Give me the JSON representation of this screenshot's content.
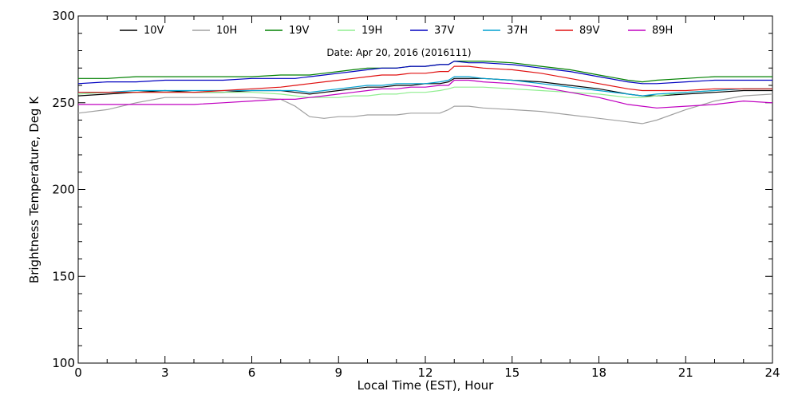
{
  "chart_data": {
    "type": "line",
    "xlabel": "Local Time (EST), Hour",
    "ylabel": "Brightness Temperature, Deg  K",
    "annotation": "Date: Apr 20, 2016 (2016111)",
    "xlim": [
      0,
      24
    ],
    "ylim": [
      100,
      300
    ],
    "xticks": [
      "0",
      "3",
      "6",
      "9",
      "12",
      "15",
      "18",
      "21",
      "24"
    ],
    "yticks": [
      "100",
      "150",
      "200",
      "250",
      "300"
    ],
    "grid": false,
    "legend_position": "top",
    "x": [
      0,
      1,
      2,
      3,
      4,
      5,
      6,
      7,
      7.5,
      8,
      8.5,
      9,
      9.5,
      10,
      10.5,
      11,
      11.5,
      12,
      12.5,
      12.8,
      13,
      13.5,
      14,
      15,
      16,
      17,
      18,
      19,
      19.5,
      20,
      21,
      22,
      23,
      24
    ],
    "series": [
      {
        "name": "10V",
        "color": "#000000",
        "values": [
          254,
          255,
          256,
          257,
          256,
          256,
          257,
          257,
          256,
          255,
          256,
          257,
          258,
          259,
          259,
          260,
          260,
          261,
          261,
          262,
          264,
          264,
          264,
          263,
          262,
          260,
          258,
          255,
          254,
          254,
          255,
          256,
          257,
          257
        ]
      },
      {
        "name": "10H",
        "color": "#a0a0a0",
        "values": [
          244,
          246,
          250,
          253,
          253,
          253,
          253,
          252,
          248,
          242,
          241,
          242,
          242,
          243,
          243,
          243,
          244,
          244,
          244,
          246,
          248,
          248,
          247,
          246,
          245,
          243,
          241,
          239,
          238,
          240,
          246,
          251,
          254,
          255
        ]
      },
      {
        "name": "19V",
        "color": "#008000",
        "values": [
          264,
          264,
          265,
          265,
          265,
          265,
          265,
          266,
          266,
          266,
          267,
          268,
          269,
          270,
          270,
          270,
          271,
          271,
          272,
          272,
          274,
          274,
          274,
          273,
          271,
          269,
          266,
          263,
          262,
          263,
          264,
          265,
          265,
          265
        ]
      },
      {
        "name": "19H",
        "color": "#90ee90",
        "values": [
          255,
          256,
          256,
          256,
          256,
          256,
          256,
          255,
          254,
          253,
          253,
          253,
          254,
          254,
          255,
          255,
          256,
          256,
          257,
          258,
          259,
          259,
          259,
          258,
          257,
          256,
          255,
          253,
          253,
          254,
          256,
          257,
          258,
          258
        ]
      },
      {
        "name": "37V",
        "color": "#0000c0",
        "values": [
          261,
          262,
          262,
          263,
          263,
          263,
          264,
          264,
          264,
          265,
          266,
          267,
          268,
          269,
          270,
          270,
          271,
          271,
          272,
          272,
          274,
          273,
          273,
          272,
          270,
          268,
          265,
          262,
          261,
          261,
          262,
          263,
          263,
          263
        ]
      },
      {
        "name": "37H",
        "color": "#00a0d0",
        "values": [
          256,
          256,
          257,
          257,
          257,
          257,
          257,
          257,
          257,
          256,
          257,
          258,
          259,
          260,
          260,
          261,
          261,
          261,
          262,
          263,
          265,
          265,
          264,
          263,
          261,
          259,
          257,
          255,
          254,
          255,
          256,
          257,
          258,
          258
        ]
      },
      {
        "name": "89V",
        "color": "#e01010",
        "values": [
          256,
          256,
          256,
          256,
          256,
          257,
          258,
          259,
          260,
          261,
          262,
          263,
          264,
          265,
          266,
          266,
          267,
          267,
          268,
          268,
          271,
          271,
          270,
          269,
          267,
          264,
          261,
          258,
          257,
          257,
          257,
          258,
          258,
          258
        ]
      },
      {
        "name": "89H",
        "color": "#c000c0",
        "values": [
          249,
          249,
          249,
          249,
          249,
          250,
          251,
          252,
          252,
          253,
          254,
          255,
          256,
          257,
          258,
          258,
          259,
          259,
          260,
          260,
          263,
          263,
          262,
          261,
          259,
          256,
          253,
          249,
          248,
          247,
          248,
          249,
          251,
          250
        ]
      }
    ]
  }
}
